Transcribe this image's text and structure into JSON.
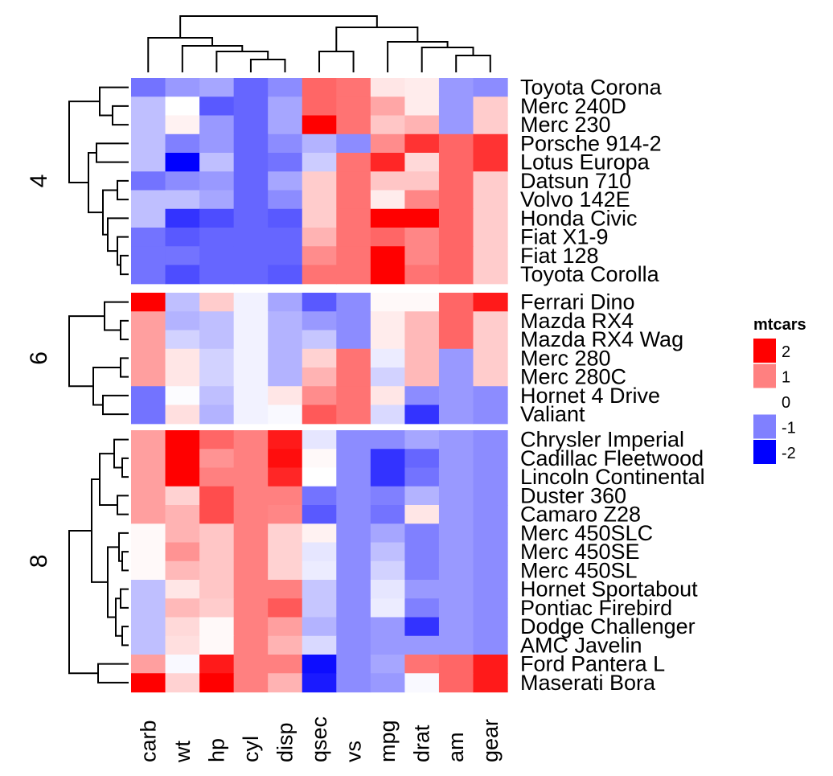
{
  "chart_data": {
    "type": "heatmap",
    "columns": [
      "carb",
      "wt",
      "hp",
      "cyl",
      "disp",
      "qsec",
      "vs",
      "mpg",
      "drat",
      "am",
      "gear"
    ],
    "groups": [
      {
        "label": "4",
        "rows": [
          "Toyota Corona",
          "Merc 240D",
          "Merc 230",
          "Porsche 914-2",
          "Lotus Europa",
          "Datsun 710",
          "Volvo 142E",
          "Honda Civic",
          "Fiat X1-9",
          "Fiat 128",
          "Toyota Corolla"
        ],
        "values": [
          [
            -1.1,
            -0.8,
            -0.7,
            -1.2,
            -0.9,
            1.2,
            1.1,
            0.2,
            0.15,
            -0.8,
            -0.9
          ],
          [
            -0.5,
            0.0,
            -1.3,
            -1.2,
            -0.7,
            1.2,
            1.1,
            0.7,
            0.15,
            -0.8,
            0.4
          ],
          [
            -0.5,
            0.1,
            -0.8,
            -1.2,
            -0.7,
            2.8,
            1.1,
            0.45,
            0.6,
            -0.8,
            0.4
          ],
          [
            -0.5,
            -1.0,
            -0.8,
            -1.2,
            -0.9,
            -0.6,
            -0.9,
            0.9,
            1.6,
            1.2,
            1.6
          ],
          [
            -0.5,
            -2.1,
            -0.5,
            -1.2,
            -1.1,
            -0.4,
            1.1,
            1.7,
            0.3,
            1.2,
            1.6
          ],
          [
            -1.1,
            -0.9,
            -0.8,
            -1.2,
            -0.7,
            0.4,
            1.1,
            0.45,
            0.45,
            1.2,
            0.4
          ],
          [
            -0.5,
            -0.5,
            -0.7,
            -1.2,
            -0.9,
            0.4,
            1.1,
            0.15,
            0.95,
            1.2,
            0.4
          ],
          [
            -0.5,
            -1.6,
            -1.4,
            -1.2,
            -1.3,
            0.4,
            1.1,
            2.0,
            2.5,
            1.2,
            0.4
          ],
          [
            -1.1,
            -1.3,
            -1.2,
            -1.2,
            -1.2,
            0.6,
            1.1,
            1.2,
            0.95,
            1.2,
            0.4
          ],
          [
            -1.1,
            -1.1,
            -1.2,
            -1.2,
            -1.2,
            0.9,
            1.1,
            2.2,
            0.95,
            1.2,
            0.4
          ],
          [
            -1.1,
            -1.4,
            -1.2,
            -1.2,
            -1.3,
            1.1,
            1.1,
            2.3,
            1.1,
            1.2,
            0.4
          ]
        ]
      },
      {
        "label": "6",
        "rows": [
          "Ferrari Dino",
          "Mazda RX4",
          "Mazda RX4 Wag",
          "Merc 280",
          "Merc 280C",
          "Hornet 4 Drive",
          "Valiant"
        ],
        "values": [
          [
            2.0,
            -0.5,
            0.4,
            -0.1,
            -0.7,
            -1.3,
            -0.9,
            0.05,
            0.05,
            1.2,
            1.8
          ],
          [
            0.75,
            -0.6,
            -0.5,
            -0.1,
            -0.6,
            -0.8,
            -0.9,
            0.15,
            0.55,
            1.2,
            0.4
          ],
          [
            0.75,
            -0.35,
            -0.5,
            -0.1,
            -0.6,
            -0.45,
            -0.9,
            0.15,
            0.55,
            1.2,
            0.4
          ],
          [
            0.75,
            0.2,
            -0.35,
            -0.1,
            -0.6,
            0.35,
            1.1,
            -0.15,
            0.55,
            -0.8,
            0.4
          ],
          [
            0.75,
            0.2,
            -0.35,
            -0.1,
            -0.6,
            0.6,
            1.1,
            -0.35,
            0.55,
            -0.8,
            0.4
          ],
          [
            -1.1,
            -0.02,
            -0.5,
            -0.1,
            0.2,
            0.9,
            1.1,
            0.2,
            -0.9,
            -0.8,
            -0.9
          ],
          [
            -1.1,
            0.25,
            -0.6,
            -0.1,
            -0.05,
            1.3,
            1.1,
            -0.3,
            -1.6,
            -0.8,
            -0.9
          ]
        ]
      },
      {
        "label": "8",
        "rows": [
          "Chrysler Imperial",
          "Cadillac Fleetwood",
          "Lincoln Continental",
          "Duster 360",
          "Camaro Z28",
          "Merc 450SLC",
          "Merc 450SE",
          "Merc 450SL",
          "Hornet Sportabout",
          "Pontiac Firebird",
          "Dodge Challenger",
          "AMC Javelin",
          "Ford Pantera L",
          "Maserati Bora"
        ],
        "values": [
          [
            0.75,
            2.2,
            1.2,
            1.0,
            1.8,
            -0.2,
            -0.9,
            -0.9,
            -0.7,
            -0.8,
            -0.9
          ],
          [
            0.75,
            2.1,
            0.85,
            1.0,
            1.9,
            0.05,
            -0.9,
            -1.6,
            -1.2,
            -0.8,
            -0.9
          ],
          [
            0.75,
            2.3,
            1.0,
            1.0,
            1.7,
            0.0,
            -0.9,
            -1.6,
            -1.1,
            -0.8,
            -0.9
          ],
          [
            0.75,
            0.35,
            1.4,
            1.0,
            1.0,
            -1.1,
            -0.9,
            -1.0,
            -0.6,
            -0.8,
            -0.9
          ],
          [
            0.75,
            0.6,
            1.4,
            1.0,
            0.95,
            -1.3,
            -0.9,
            -1.1,
            0.2,
            -0.8,
            -0.9
          ],
          [
            0.05,
            0.6,
            0.45,
            1.0,
            0.35,
            0.1,
            -0.9,
            -0.7,
            -1.0,
            -0.8,
            -0.9
          ],
          [
            0.05,
            0.85,
            0.45,
            1.0,
            0.35,
            -0.2,
            -0.9,
            -0.5,
            -1.0,
            -0.8,
            -0.9
          ],
          [
            0.05,
            0.55,
            0.45,
            1.0,
            0.35,
            -0.15,
            -0.9,
            -0.35,
            -1.0,
            -0.8,
            -0.9
          ],
          [
            -0.5,
            0.2,
            0.45,
            1.0,
            1.0,
            -0.45,
            -0.9,
            -0.2,
            -0.8,
            -0.8,
            -0.9
          ],
          [
            -0.5,
            0.55,
            0.4,
            1.0,
            1.3,
            -0.45,
            -0.9,
            -0.15,
            -1.0,
            -0.8,
            -0.9
          ],
          [
            -0.5,
            0.3,
            0.05,
            1.0,
            0.75,
            -0.6,
            -0.9,
            -0.8,
            -1.6,
            -0.8,
            -0.9
          ],
          [
            -0.5,
            0.25,
            0.05,
            1.0,
            0.6,
            -0.3,
            -0.9,
            -0.8,
            -0.8,
            -0.8,
            -0.9
          ],
          [
            0.75,
            -0.05,
            1.8,
            1.0,
            1.0,
            -1.9,
            -0.9,
            -0.7,
            1.1,
            1.2,
            1.8
          ],
          [
            2.2,
            0.35,
            2.4,
            1.0,
            0.6,
            -1.8,
            -0.9,
            -0.8,
            -0.05,
            1.2,
            1.8
          ]
        ]
      }
    ],
    "legend": {
      "title": "mtcars",
      "ticks": [
        "2",
        "1",
        "0",
        "-1",
        "-2"
      ],
      "placement": "right"
    },
    "color_scale": {
      "low": "#0000ff",
      "mid": "#ffffff",
      "high": "#ff0000",
      "domain": [
        -2,
        0,
        2
      ]
    }
  }
}
